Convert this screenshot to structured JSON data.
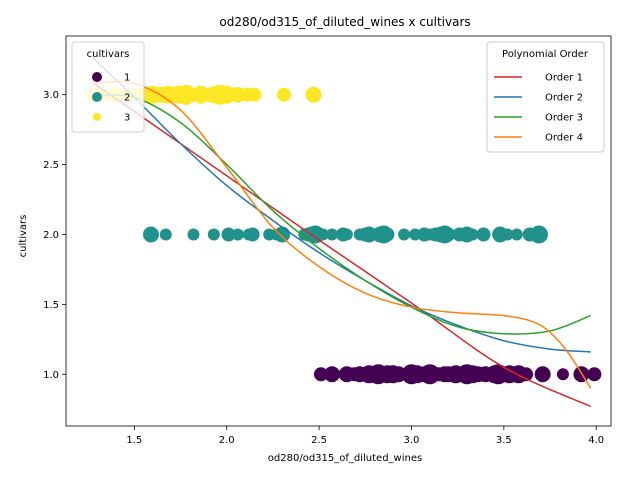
{
  "chart_data": {
    "type": "scatter",
    "title": "od280/od315_of_diluted_wines x cultivars",
    "xlabel": "od280/od315_of_diluted_wines",
    "ylabel": "cultivars",
    "xlim": [
      1.13,
      4.08
    ],
    "ylim": [
      0.63,
      3.42
    ],
    "xticks": [
      "1.5",
      "2.0",
      "2.5",
      "3.0",
      "3.5",
      "4.0"
    ],
    "xtick_values": [
      1.5,
      2.0,
      2.5,
      3.0,
      3.5,
      4.0
    ],
    "yticks": [
      "1.0",
      "1.5",
      "2.0",
      "2.5",
      "3.0"
    ],
    "ytick_values": [
      1.0,
      1.5,
      2.0,
      2.5,
      3.0
    ],
    "grid": false,
    "scatter_legend": {
      "title": "cultivars",
      "placement": "top-left",
      "entries": [
        {
          "label": "1",
          "color": "#440154"
        },
        {
          "label": "2",
          "color": "#21918c"
        },
        {
          "label": "3",
          "color": "#fde725"
        }
      ]
    },
    "points": [
      {
        "class": "3",
        "color": "#fde725",
        "y": 3.0,
        "x": [
          1.27,
          1.29,
          1.3,
          1.33,
          1.36,
          1.4,
          1.42,
          1.47,
          1.48,
          1.51,
          1.55,
          1.56,
          1.58,
          1.59,
          1.6,
          1.62,
          1.64,
          1.67,
          1.68,
          1.69,
          1.71,
          1.73,
          1.74,
          1.75,
          1.78,
          1.8,
          1.82,
          1.83,
          1.86,
          1.92,
          1.96,
          2.0,
          2.05,
          2.06,
          2.11,
          2.15,
          2.31,
          2.47
        ],
        "size": [
          6,
          5,
          7,
          6,
          5,
          8,
          6,
          7,
          6,
          6,
          7,
          8,
          6,
          7,
          9,
          6,
          8,
          7,
          9,
          7,
          8,
          6,
          9,
          7,
          10,
          8,
          7,
          6,
          9,
          8,
          10,
          9,
          7,
          8,
          7,
          7,
          7,
          8
        ]
      },
      {
        "class": "2",
        "color": "#21918c",
        "y": 2.0,
        "x": [
          1.59,
          1.67,
          1.82,
          1.93,
          2.01,
          2.06,
          2.12,
          2.14,
          2.23,
          2.27,
          2.3,
          2.42,
          2.44,
          2.46,
          2.48,
          2.5,
          2.52,
          2.57,
          2.63,
          2.65,
          2.72,
          2.75,
          2.77,
          2.78,
          2.81,
          2.83,
          2.85,
          2.87,
          2.96,
          3.02,
          3.07,
          3.1,
          3.13,
          3.16,
          3.18,
          3.2,
          3.26,
          3.28,
          3.3,
          3.33,
          3.39,
          3.48,
          3.52,
          3.57,
          3.64,
          3.69
        ],
        "size": [
          8,
          6,
          6,
          6,
          7,
          6,
          6,
          7,
          6,
          6,
          8,
          6,
          7,
          8,
          9,
          7,
          6,
          6,
          7,
          6,
          6,
          7,
          8,
          7,
          6,
          8,
          9,
          7,
          6,
          6,
          7,
          6,
          7,
          8,
          9,
          7,
          7,
          6,
          8,
          6,
          7,
          8,
          6,
          6,
          7,
          9
        ]
      },
      {
        "class": "1",
        "color": "#440154",
        "y": 1.0,
        "x": [
          2.51,
          2.57,
          2.65,
          2.69,
          2.72,
          2.77,
          2.82,
          2.84,
          2.87,
          2.9,
          2.93,
          3.0,
          3.03,
          3.07,
          3.1,
          3.15,
          3.18,
          3.2,
          3.24,
          3.28,
          3.3,
          3.33,
          3.36,
          3.38,
          3.4,
          3.45,
          3.47,
          3.5,
          3.53,
          3.55,
          3.58,
          3.62,
          3.71,
          3.82,
          3.92,
          3.99
        ],
        "size": [
          7,
          8,
          8,
          7,
          8,
          9,
          10,
          8,
          9,
          9,
          8,
          10,
          9,
          8,
          10,
          7,
          8,
          8,
          9,
          8,
          10,
          9,
          8,
          7,
          8,
          9,
          10,
          8,
          9,
          8,
          9,
          7,
          8,
          6,
          8,
          7
        ]
      }
    ],
    "series_legend": {
      "title": "Polynomial Order",
      "placement": "top-right"
    },
    "series": [
      {
        "name": "Order 1",
        "color": "#d62728",
        "x": [
          1.27,
          1.5,
          2.0,
          2.5,
          3.0,
          3.5,
          3.97
        ],
        "y": [
          3.09,
          2.88,
          2.42,
          1.96,
          1.51,
          1.05,
          0.77
        ]
      },
      {
        "name": "Order 2",
        "color": "#1f77b4",
        "x": [
          1.27,
          1.5,
          1.75,
          2.0,
          2.25,
          2.5,
          2.75,
          3.0,
          3.25,
          3.5,
          3.75,
          3.97
        ],
        "y": [
          3.27,
          2.98,
          2.65,
          2.35,
          2.1,
          1.87,
          1.67,
          1.49,
          1.35,
          1.24,
          1.18,
          1.16
        ]
      },
      {
        "name": "Order 3",
        "color": "#2ca02c",
        "x": [
          1.27,
          1.5,
          1.75,
          2.0,
          2.25,
          2.5,
          2.75,
          3.0,
          3.25,
          3.5,
          3.75,
          3.97
        ],
        "y": [
          2.99,
          2.98,
          2.8,
          2.5,
          2.17,
          1.9,
          1.67,
          1.48,
          1.34,
          1.29,
          1.31,
          1.42
        ]
      },
      {
        "name": "Order 4",
        "color": "#ff7f0e",
        "x": [
          1.27,
          1.5,
          1.75,
          2.0,
          2.25,
          2.5,
          2.75,
          3.0,
          3.25,
          3.5,
          3.65,
          3.75,
          3.85,
          3.97
        ],
        "y": [
          3.08,
          3.08,
          2.89,
          2.48,
          2.05,
          1.77,
          1.58,
          1.48,
          1.44,
          1.42,
          1.38,
          1.3,
          1.15,
          0.9
        ]
      }
    ]
  }
}
